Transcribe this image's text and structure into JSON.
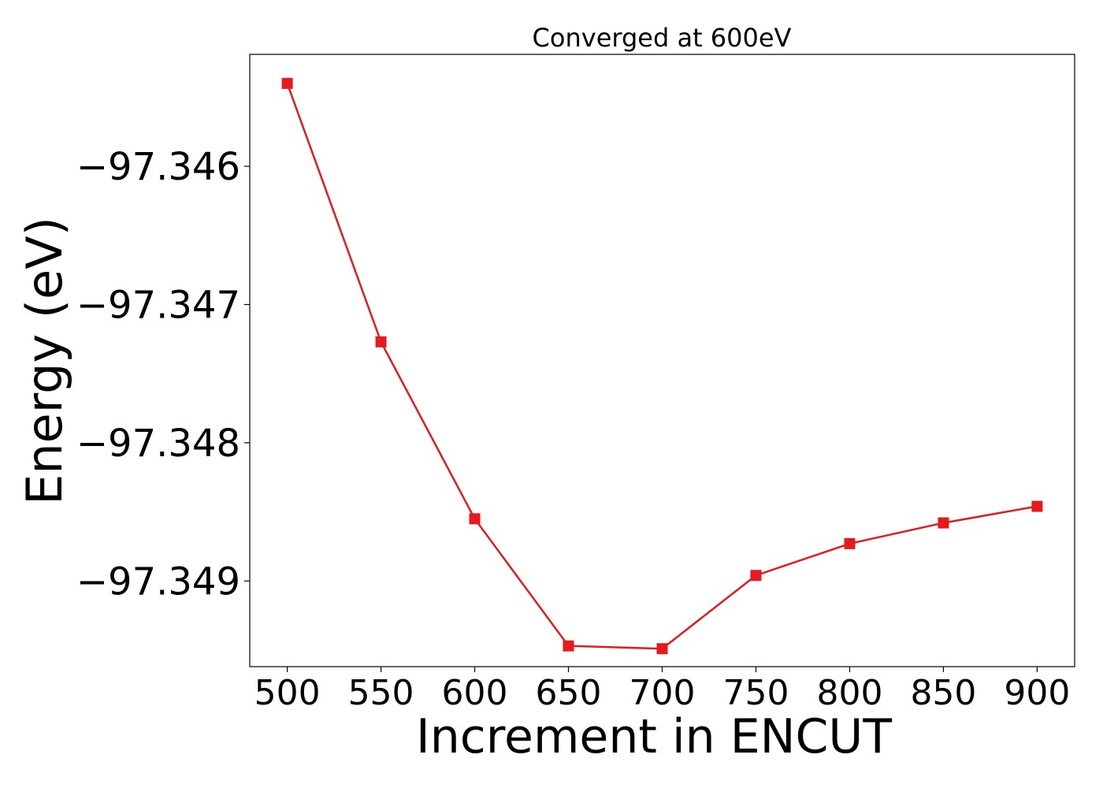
{
  "chart_data": {
    "type": "line",
    "title": "Converged at 600eV",
    "xlabel": "Increment in ENCUT",
    "ylabel": "Energy (eV)",
    "x": [
      500,
      550,
      600,
      650,
      700,
      750,
      800,
      850,
      900
    ],
    "series": [
      {
        "values": [
          -97.3454,
          -97.34727,
          -97.34855,
          -97.34947,
          -97.34949,
          -97.34896,
          -97.34873,
          -97.34858,
          -97.34846
        ],
        "color": "#e41a1c",
        "marker": "square"
      }
    ],
    "xticks": [
      500,
      550,
      600,
      650,
      700,
      750,
      800,
      850,
      900
    ],
    "xtick_labels": [
      "500",
      "550",
      "600",
      "650",
      "700",
      "750",
      "800",
      "850",
      "900"
    ],
    "yticks": [
      -97.346,
      -97.347,
      -97.348,
      -97.349
    ],
    "ytick_labels": [
      "−97.346",
      "−97.347",
      "−97.348",
      "−97.349"
    ],
    "xlim": [
      480,
      920
    ],
    "ylim": [
      -97.34962,
      -97.34519
    ],
    "grid": false,
    "legend": "none"
  }
}
